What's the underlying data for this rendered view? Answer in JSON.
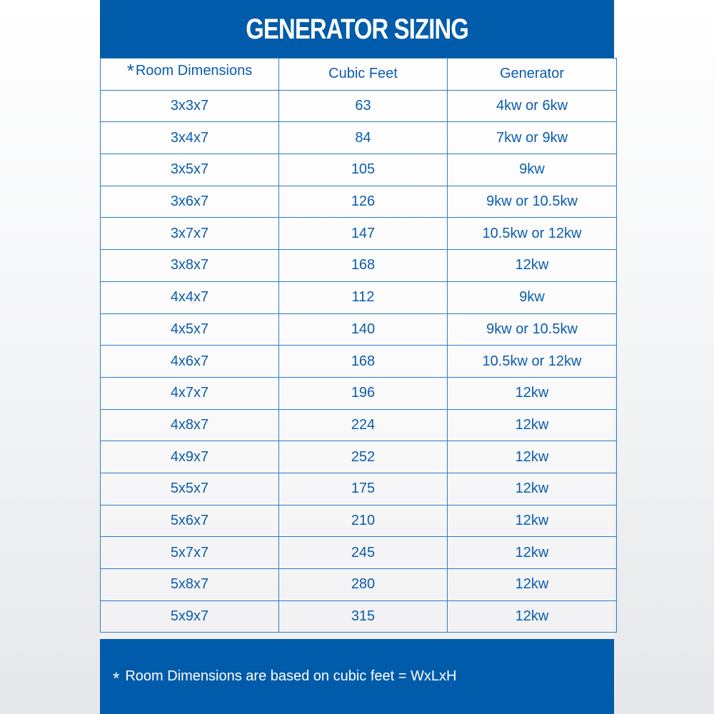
{
  "title": "GENERATOR SIZING",
  "colors": {
    "brand_blue": "#005baa",
    "text_blue": "#0b5cad",
    "grid": "#2f7bc8"
  },
  "columns": {
    "asterisk": "*",
    "room": "Room Dimensions",
    "cubic": "Cubic Feet",
    "generator": "Generator"
  },
  "rows": [
    {
      "room": "3x3x7",
      "cubic": "63",
      "generator": "4kw or 6kw"
    },
    {
      "room": "3x4x7",
      "cubic": "84",
      "generator": "7kw or 9kw"
    },
    {
      "room": "3x5x7",
      "cubic": "105",
      "generator": "9kw"
    },
    {
      "room": "3x6x7",
      "cubic": "126",
      "generator": "9kw or 10.5kw"
    },
    {
      "room": "3x7x7",
      "cubic": "147",
      "generator": "10.5kw or 12kw"
    },
    {
      "room": "3x8x7",
      "cubic": "168",
      "generator": "12kw"
    },
    {
      "room": "4x4x7",
      "cubic": "112",
      "generator": "9kw"
    },
    {
      "room": "4x5x7",
      "cubic": "140",
      "generator": "9kw or 10.5kw"
    },
    {
      "room": "4x6x7",
      "cubic": "168",
      "generator": "10.5kw or 12kw"
    },
    {
      "room": "4x7x7",
      "cubic": "196",
      "generator": "12kw"
    },
    {
      "room": "4x8x7",
      "cubic": "224",
      "generator": "12kw"
    },
    {
      "room": "4x9x7",
      "cubic": "252",
      "generator": "12kw"
    },
    {
      "room": "5x5x7",
      "cubic": "175",
      "generator": "12kw"
    },
    {
      "room": "5x6x7",
      "cubic": "210",
      "generator": "12kw"
    },
    {
      "room": "5x7x7",
      "cubic": "245",
      "generator": "12kw"
    },
    {
      "room": "5x8x7",
      "cubic": "280",
      "generator": "12kw"
    },
    {
      "room": "5x9x7",
      "cubic": "315",
      "generator": "12kw"
    }
  ],
  "footer": {
    "asterisk": "*",
    "note": "Room Dimensions are based on cubic feet = WxLxH"
  }
}
